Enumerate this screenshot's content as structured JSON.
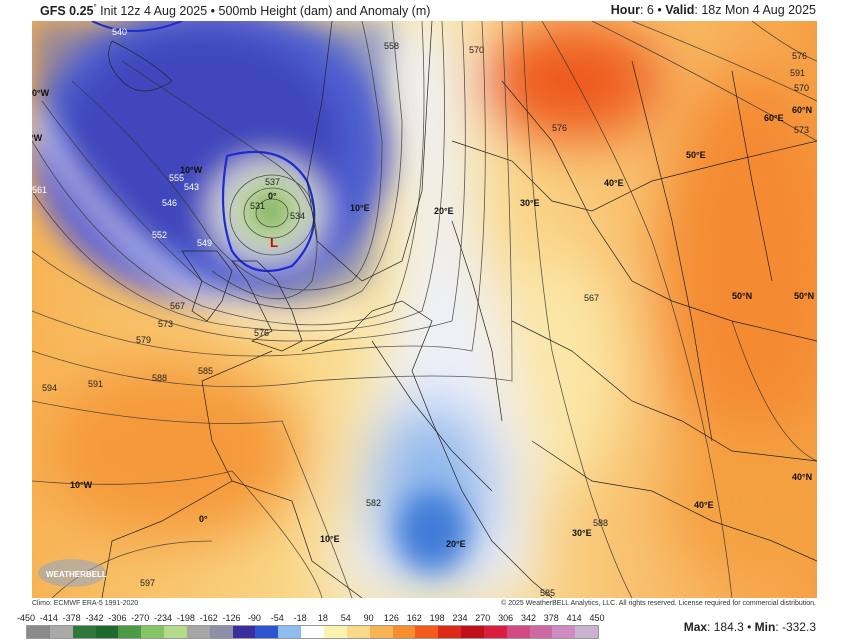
{
  "header": {
    "model": "GFS 0.25",
    "degree": "°",
    "title_rest": " Init 12z 4 Aug 2025 • 500mb Height (dam) and Anomaly (m)",
    "hour_label": "Hour",
    "hour_value": ": 6 • ",
    "valid_label": "Valid",
    "valid_value": ": 18z Mon 4 Aug 2025"
  },
  "footer": {
    "climo": "Climo: ECMWF ERA-5 1991-2020",
    "copyright": "© 2025 WeatherBELL Analytics, LLC. All rights reserved. License required for commercial distribution.",
    "max_label": "Max",
    "max_value": ": 184.3 • ",
    "min_label": "Min",
    "min_value": ": -332.3"
  },
  "logo": "WeatherBELL",
  "colorbar": {
    "ticks": [
      "-450",
      "-414",
      "-378",
      "-342",
      "-306",
      "-270",
      "-234",
      "-198",
      "-162",
      "-126",
      "-90",
      "-54",
      "-18",
      "18",
      "54",
      "90",
      "126",
      "162",
      "198",
      "234",
      "270",
      "306",
      "342",
      "378",
      "414",
      "450"
    ],
    "colors": [
      "#8a8a8a",
      "#a9a9a9",
      "#2f7a3a",
      "#1e6a2c",
      "#4c9a48",
      "#87c468",
      "#b6da8c",
      "#a6a6a6",
      "#8f8fa6",
      "#3a2e9e",
      "#2d55d2",
      "#8fbcec",
      "#ffffff",
      "#fbf3b0",
      "#fbd98a",
      "#f7b455",
      "#f68d2e",
      "#f25a1e",
      "#dc2a1a",
      "#c0101a",
      "#d81e3c",
      "#d24a84",
      "#cc6aa6",
      "#cf8cc0",
      "#c8b2d2"
    ]
  },
  "map": {
    "lon_labels": [
      "0°W",
      "20°W",
      "10°W",
      "0°",
      "10°E",
      "20°E",
      "30°E",
      "40°E",
      "50°E",
      "60°E",
      "60°N",
      "50°N",
      "40°N",
      "10°W",
      "0°",
      "10°E",
      "20°E",
      "30°E",
      "40°E",
      "50°N"
    ],
    "contour_labels": [
      "540",
      "537",
      "534",
      "531",
      "543",
      "546",
      "552",
      "549",
      "555",
      "558",
      "561",
      "567",
      "570",
      "573",
      "576",
      "579",
      "585",
      "588",
      "591",
      "594",
      "597",
      "582",
      "585",
      "588",
      "591",
      "570",
      "573",
      "576",
      "567",
      "576"
    ],
    "low_center": "L"
  }
}
